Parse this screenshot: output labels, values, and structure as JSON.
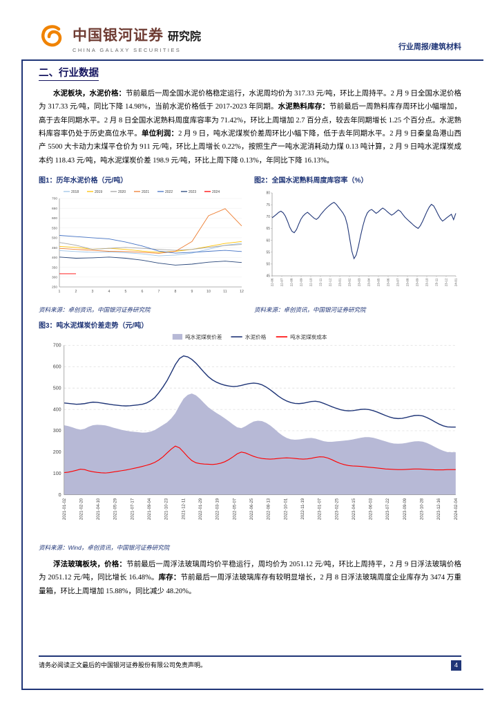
{
  "header": {
    "logo_cn": "中国银河证券",
    "logo_suffix": "研究院",
    "logo_en": "CHINA GALAXY SECURITIES",
    "report_tag": "行业周报/建筑材料"
  },
  "section": {
    "title": "二、行业数据"
  },
  "paragraphs": {
    "cement": [
      {
        "b": true,
        "t": "水泥板块，水泥价格："
      },
      {
        "b": false,
        "t": "节前最后一周全国水泥价格稳定运行，水泥周均价为 317.33 元/吨，环比上周持平。2 月 9 日全国水泥价格为 317.33 元/吨，同比下降 14.98%，当前水泥价格低于 2017-2023 年同期。"
      },
      {
        "b": true,
        "t": "水泥熟料库存："
      },
      {
        "b": false,
        "t": "节前最后一周熟料库存周环比小幅增加，高于去年同期水平。2 月 8 日全国水泥熟料周度库容率为 71.42%，环比上周增加 2.7 百分点，较去年同期增长 1.25 个百分点。水泥熟料库容率仍处于历史高位水平。"
      },
      {
        "b": true,
        "t": "单位利润："
      },
      {
        "b": false,
        "t": "2 月 9 日，吨水泥煤炭价差周环比小幅下降，低于去年同期水平。2 月 9 日秦皇岛港山西产 5500 大卡动力末煤平仓价为 911 元/吨，环比上周增长 0.22%，按照生产一吨水泥消耗动力煤 0.13 吨计算，2 月 9 日吨水泥煤炭成本约 118.43 元/吨，吨水泥煤炭价差 198.9 元/吨，环比上周下降 0.13%，年同比下降 16.13%。"
      }
    ],
    "glass": [
      {
        "b": true,
        "t": "浮法玻璃板块，价格："
      },
      {
        "b": false,
        "t": "节前最后一周浮法玻璃周均价平稳运行，周均价为 2051.12 元/吨，环比上周持平，2 月 9 日浮法玻璃价格为 2051.12 元/吨，同比增长 16.48%。"
      },
      {
        "b": true,
        "t": "库存："
      },
      {
        "b": false,
        "t": "节前最后一周浮法玻璃库存有较明显增长，2 月 8 日浮法玻璃周度企业库存为 3474 万重量箱，环比上周增加 15.88%，同比减少 48.20%。"
      }
    ]
  },
  "figures": {
    "fig1": {
      "title": "图1：历年水泥价格（元/吨）",
      "source": "资料来源：卓创资讯，中国银河证券研究院"
    },
    "fig2": {
      "title": "图2：全国水泥熟料周度库容率（%）",
      "source": "资料来源：卓创资讯，中国银河证券研究院"
    },
    "fig3": {
      "title": "图3：吨水泥煤炭价差走势（元/吨）",
      "source": "资料来源：Wind，卓创资讯，中国银河证券研究院"
    }
  },
  "chart_data": [
    {
      "type": "line",
      "title": "图1：历年水泥价格（元/吨）",
      "xlabel": "",
      "ylabel": "",
      "x": [
        1,
        2,
        3,
        4,
        5,
        6,
        7,
        8,
        9,
        10,
        11,
        12
      ],
      "ylim": [
        250,
        700
      ],
      "ytick_step": 50,
      "grid": true,
      "legend_position": "top",
      "series": [
        {
          "name": "2018",
          "color": "#9dc3e6",
          "values": [
            435,
            430,
            426,
            428,
            424,
            418,
            408,
            412,
            422,
            442,
            462,
            472
          ]
        },
        {
          "name": "2019",
          "color": "#ffc000",
          "values": [
            456,
            451,
            442,
            446,
            441,
            432,
            426,
            431,
            441,
            456,
            471,
            481
          ]
        },
        {
          "name": "2020",
          "color": "#a5a5a5",
          "values": [
            476,
            462,
            441,
            446,
            451,
            446,
            441,
            436,
            441,
            451,
            461,
            466
          ]
        },
        {
          "name": "2021",
          "color": "#ed7d31",
          "values": [
            446,
            441,
            436,
            431,
            430,
            426,
            421,
            431,
            481,
            612,
            648,
            560
          ]
        },
        {
          "name": "2022",
          "color": "#4472c4",
          "values": [
            512,
            506,
            500,
            494,
            478,
            458,
            432,
            422,
            426,
            431,
            436,
            430
          ]
        },
        {
          "name": "2023",
          "color": "#264478",
          "values": [
            402,
            396,
            398,
            402,
            396,
            386,
            371,
            361,
            366,
            376,
            381,
            374
          ]
        },
        {
          "name": "2024",
          "color": "#ff0000",
          "values": [
            317,
            317
          ]
        }
      ]
    },
    {
      "type": "line",
      "title": "图2：全国水泥熟料周度库容率（%）",
      "xlabel": "",
      "ylabel": "",
      "ylim": [
        45,
        80
      ],
      "ytick_step": 5,
      "grid": false,
      "x_labels": [
        "22-06",
        "22-07",
        "22-08",
        "22-09",
        "22-10",
        "22-11",
        "22-12",
        "23-01",
        "23-02",
        "23-03",
        "23-04",
        "23-05",
        "23-06",
        "23-07",
        "23-08",
        "23-09",
        "23-10",
        "23-11",
        "23-12",
        "24-01"
      ],
      "series": [
        {
          "name": "全国水泥熟料周度库容率",
          "color": "#1f3577",
          "values": [
            69.5,
            70.2,
            71.0,
            71.8,
            72.3,
            71.6,
            70.2,
            68.0,
            65.5,
            63.8,
            63.2,
            64.5,
            66.8,
            68.9,
            70.3,
            71.2,
            71.8,
            71.0,
            70.1,
            69.3,
            68.8,
            69.6,
            70.9,
            72.0,
            73.1,
            74.0,
            74.8,
            75.5,
            76.0,
            75.2,
            74.0,
            72.8,
            71.5,
            69.8,
            66.5,
            61.0,
            55.5,
            52.3,
            53.8,
            57.5,
            62.0,
            66.0,
            69.3,
            71.5,
            72.6,
            73.0,
            72.2,
            71.4,
            72.0,
            72.9,
            73.6,
            73.0,
            72.1,
            71.3,
            70.6,
            71.2,
            72.0,
            72.8,
            72.2,
            71.0,
            69.8,
            68.9,
            68.0,
            67.2,
            66.3,
            65.6,
            65.0,
            66.2,
            68.0,
            70.1,
            72.2,
            74.0,
            75.2,
            74.5,
            72.8,
            70.9,
            69.2,
            68.1,
            68.8,
            69.6,
            70.3,
            71.0,
            68.7,
            71.4
          ]
        }
      ]
    },
    {
      "type": "area",
      "title": "图3：吨水泥煤炭价差走势（元/吨）",
      "xlabel": "",
      "ylabel": "",
      "ylim": [
        0,
        700
      ],
      "ytick_step": 100,
      "grid": true,
      "legend_position": "top",
      "x_labels": [
        "2021-01-02",
        "2021-02-20",
        "2021-04-10",
        "2021-05-29",
        "2021-07-17",
        "2021-09-04",
        "2021-10-23",
        "2021-12-11",
        "2022-01-29",
        "2022-03-19",
        "2022-05-07",
        "2022-06-25",
        "2022-08-13",
        "2022-10-01",
        "2022-11-19",
        "2023-01-07",
        "2023-02-25",
        "2023-04-15",
        "2023-06-03",
        "2023-07-22",
        "2023-09-09",
        "2023-10-28",
        "2023-12-16",
        "2024-02-04"
      ],
      "series": [
        {
          "name": "吨水泥煤炭价差",
          "style": "area",
          "color": "#b7b9d6",
          "values": [
            326,
            322,
            316,
            309,
            305,
            309,
            319,
            326,
            328,
            327,
            325,
            320,
            314,
            309,
            304,
            300,
            297,
            295,
            293,
            291,
            292,
            296,
            303,
            315,
            327,
            339,
            358,
            382,
            418,
            450,
            468,
            474,
            466,
            449,
            429,
            410,
            396,
            383,
            371,
            358,
            344,
            329,
            316,
            312,
            321,
            333,
            343,
            347,
            345,
            337,
            325,
            309,
            292,
            277,
            266,
            260,
            258,
            259,
            262,
            265,
            266,
            263,
            257,
            251,
            248,
            248,
            250,
            252,
            254,
            256,
            259,
            263,
            267,
            270,
            270,
            267,
            262,
            256,
            250,
            244,
            240,
            239,
            240,
            243,
            247,
            250,
            251,
            249,
            243,
            234,
            224,
            214,
            206,
            200,
            199,
            199
          ]
        },
        {
          "name": "水泥价格",
          "style": "line",
          "color": "#1f3577",
          "values": [
            430,
            428,
            426,
            424,
            425,
            427,
            431,
            434,
            433,
            430,
            427,
            424,
            421,
            419,
            417,
            416,
            417,
            419,
            421,
            424,
            430,
            440,
            455,
            478,
            505,
            535,
            572,
            610,
            638,
            650,
            646,
            634,
            616,
            595,
            573,
            553,
            538,
            527,
            519,
            513,
            509,
            507,
            508,
            512,
            517,
            521,
            523,
            521,
            515,
            505,
            492,
            477,
            462,
            449,
            439,
            432,
            428,
            427,
            429,
            433,
            437,
            438,
            435,
            428,
            420,
            412,
            405,
            399,
            395,
            393,
            394,
            397,
            400,
            401,
            399,
            394,
            387,
            379,
            371,
            364,
            359,
            357,
            358,
            362,
            367,
            371,
            372,
            369,
            362,
            352,
            341,
            331,
            323,
            318,
            317,
            317
          ]
        },
        {
          "name": "吨水泥煤炭成本",
          "style": "line",
          "color": "#ff0000",
          "values": [
            104,
            106,
            110,
            115,
            120,
            118,
            112,
            108,
            105,
            103,
            102,
            104,
            107,
            110,
            113,
            116,
            120,
            124,
            128,
            133,
            138,
            144,
            152,
            163,
            178,
            196,
            214,
            228,
            220,
            200,
            178,
            160,
            150,
            146,
            144,
            143,
            142,
            144,
            148,
            155,
            165,
            178,
            192,
            200,
            196,
            188,
            180,
            174,
            170,
            168,
            167,
            168,
            170,
            172,
            173,
            172,
            170,
            168,
            167,
            168,
            171,
            175,
            178,
            177,
            172,
            164,
            155,
            147,
            141,
            137,
            135,
            134,
            133,
            131,
            129,
            127,
            125,
            123,
            121,
            120,
            119,
            118,
            118,
            119,
            120,
            121,
            121,
            120,
            119,
            118,
            117,
            117,
            117,
            118,
            118,
            118
          ]
        }
      ]
    }
  ],
  "footer": {
    "disclaimer": "请务必阅读正文最后的中国银河证券股份有限公司免责声明。",
    "page": "4"
  },
  "colors": {
    "navy": "#1f3577",
    "red": "#ff0000",
    "lavender": "#b7b9d6",
    "logo_orange": "#f08300"
  }
}
